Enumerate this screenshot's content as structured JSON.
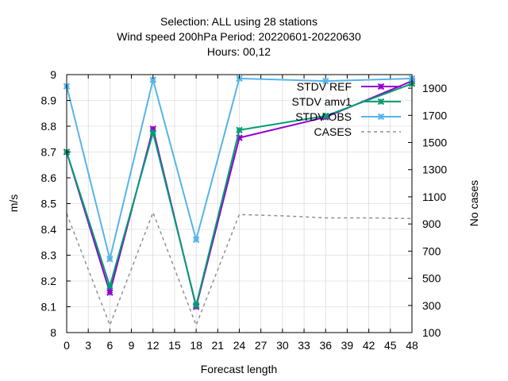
{
  "title": {
    "line1": "Selection: ALL using    28 stations",
    "line2": "Wind speed 200hPa   Period: 20220601-20220630",
    "line3": "Hours:  00,12"
  },
  "chart_data": {
    "type": "line",
    "xlabel": "Forecast length",
    "ylabel": "m/s",
    "y2label": "No cases",
    "xlim": [
      0,
      48
    ],
    "ylim": [
      8,
      9
    ],
    "y2lim": [
      100,
      2000
    ],
    "x_ticks": [
      "0",
      "3",
      "6",
      "9",
      "12",
      "15",
      "18",
      "21",
      "24",
      "27",
      "30",
      "33",
      "36",
      "39",
      "42",
      "45",
      "48"
    ],
    "y_ticks": [
      "8",
      "8.1",
      "8.2",
      "8.3",
      "8.4",
      "8.5",
      "8.6",
      "8.7",
      "8.8",
      "8.9",
      "9"
    ],
    "y2_ticks": [
      "100",
      "300",
      "500",
      "700",
      "900",
      "1100",
      "1300",
      "1500",
      "1700",
      "1900"
    ],
    "grid": true,
    "legend_position": "top-right",
    "series": [
      {
        "name": "STDV REF",
        "color": "#9400d3",
        "axis": "y",
        "marker": "x",
        "points": [
          [
            0,
            8.7
          ],
          [
            6,
            8.155
          ],
          [
            12,
            8.79
          ],
          [
            18,
            8.1
          ],
          [
            24,
            8.755
          ],
          [
            36,
            8.835
          ],
          [
            48,
            8.975
          ]
        ]
      },
      {
        "name": "STDV amv1",
        "color": "#009e73",
        "axis": "y",
        "marker": "x",
        "points": [
          [
            0,
            8.7
          ],
          [
            6,
            8.18
          ],
          [
            12,
            8.775
          ],
          [
            18,
            8.105
          ],
          [
            24,
            8.785
          ],
          [
            36,
            8.84
          ],
          [
            48,
            8.965
          ]
        ]
      },
      {
        "name": "STDV OBS",
        "color": "#56b4e9",
        "axis": "y",
        "marker": "x",
        "points": [
          [
            0,
            8.955
          ],
          [
            6,
            8.285
          ],
          [
            12,
            8.98
          ],
          [
            18,
            8.36
          ],
          [
            24,
            8.985
          ],
          [
            36,
            8.975
          ],
          [
            48,
            8.985
          ]
        ]
      },
      {
        "name": "CASES",
        "color": "#909090",
        "axis": "y2",
        "marker": "none",
        "dashed": true,
        "points": [
          [
            0,
            975
          ],
          [
            6,
            155
          ],
          [
            12,
            985
          ],
          [
            18,
            155
          ],
          [
            24,
            970
          ],
          [
            30,
            960
          ],
          [
            36,
            945
          ],
          [
            42,
            945
          ],
          [
            48,
            940
          ]
        ]
      }
    ]
  }
}
